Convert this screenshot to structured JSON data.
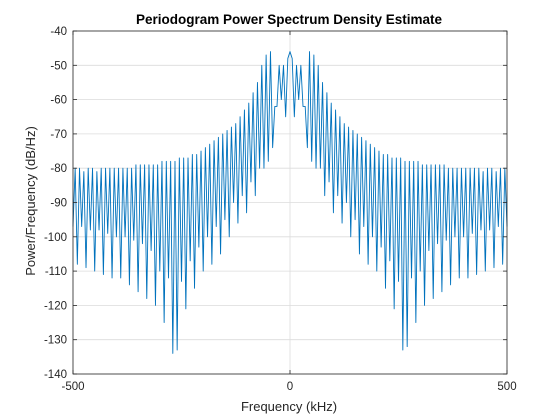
{
  "chart_data": {
    "type": "line",
    "title": "Periodogram Power Spectrum Density Estimate",
    "xlabel": "Frequency (kHz)",
    "ylabel": "Power/Frequency (dB/Hz)",
    "xlim": [
      -500,
      500
    ],
    "ylim": [
      -140,
      -40
    ],
    "x_ticks": [
      -500,
      0,
      500
    ],
    "x_tick_labels": [
      "-500",
      "0",
      "500"
    ],
    "y_ticks": [
      -140,
      -130,
      -120,
      -110,
      -100,
      -90,
      -80,
      -70,
      -60,
      -50,
      -40
    ],
    "y_tick_labels": [
      "-140",
      "-130",
      "-120",
      "-110",
      "-100",
      "-90",
      "-80",
      "-70",
      "-60",
      "-50",
      "-40"
    ],
    "grid": true,
    "line_color": "#0072BD",
    "series": [
      {
        "name": "",
        "x": [
          -500,
          -495,
          -490,
          -485,
          -480,
          -475,
          -470,
          -465,
          -460,
          -455,
          -450,
          -445,
          -440,
          -435,
          -430,
          -425,
          -420,
          -415,
          -410,
          -405,
          -400,
          -395,
          -390,
          -385,
          -380,
          -375,
          -370,
          -365,
          -360,
          -355,
          -350,
          -345,
          -340,
          -335,
          -330,
          -325,
          -320,
          -315,
          -310,
          -305,
          -300,
          -295,
          -290,
          -285,
          -280,
          -275,
          -270,
          -265,
          -260,
          -255,
          -250,
          -245,
          -240,
          -235,
          -230,
          -225,
          -220,
          -215,
          -210,
          -205,
          -200,
          -195,
          -190,
          -185,
          -180,
          -175,
          -170,
          -165,
          -160,
          -155,
          -150,
          -145,
          -140,
          -135,
          -130,
          -125,
          -120,
          -115,
          -110,
          -105,
          -100,
          -95,
          -90,
          -85,
          -80,
          -75,
          -70,
          -65,
          -60,
          -55,
          -50,
          -45,
          -40,
          -35,
          -30,
          -25,
          -20,
          -15,
          -10,
          -5,
          0,
          5,
          10,
          15,
          20,
          25,
          30,
          35,
          40,
          45,
          50,
          55,
          60,
          65,
          70,
          75,
          80,
          85,
          90,
          95,
          100,
          105,
          110,
          115,
          120,
          125,
          130,
          135,
          140,
          145,
          150,
          155,
          160,
          165,
          170,
          175,
          180,
          185,
          190,
          195,
          200,
          205,
          210,
          215,
          220,
          225,
          230,
          235,
          240,
          245,
          250,
          255,
          260,
          265,
          270,
          275,
          280,
          285,
          290,
          295,
          300,
          305,
          310,
          315,
          320,
          325,
          330,
          335,
          340,
          345,
          350,
          355,
          360,
          365,
          370,
          375,
          380,
          385,
          390,
          395,
          400,
          405,
          410,
          415,
          420,
          425,
          430,
          435,
          440,
          445,
          450,
          455,
          460,
          465,
          470,
          475,
          480,
          485,
          490,
          495,
          500
        ],
        "y": [
          -97,
          -80,
          -108,
          -80,
          -97,
          -81,
          -109,
          -80,
          -98,
          -80,
          -110,
          -81,
          -98,
          -80,
          -111,
          -80,
          -99,
          -80,
          -112,
          -80,
          -100,
          -80,
          -112,
          -80,
          -100,
          -80,
          -114,
          -80,
          -101,
          -79,
          -116,
          -79,
          -102,
          -79,
          -118,
          -79,
          -104,
          -79,
          -120,
          -79,
          -110,
          -78,
          -125,
          -78,
          -112,
          -78,
          -134,
          -78,
          -133,
          -77,
          -113,
          -77,
          -121,
          -77,
          -107,
          -76,
          -115,
          -76,
          -103,
          -75,
          -110,
          -74,
          -100,
          -73,
          -108,
          -72,
          -97,
          -71,
          -105,
          -70,
          -95,
          -69,
          -100,
          -68,
          -90,
          -67,
          -96,
          -65,
          -88,
          -63,
          -93,
          -61,
          -84,
          -58,
          -88,
          -55,
          -80,
          -50,
          -80,
          -47,
          -78,
          -46,
          -74,
          -62,
          -62,
          -50,
          -60,
          -50,
          -65,
          -48,
          -46,
          -48,
          -65,
          -50,
          -60,
          -50,
          -62,
          -62,
          -74,
          -46,
          -78,
          -47,
          -80,
          -50,
          -80,
          -55,
          -88,
          -58,
          -84,
          -61,
          -93,
          -63,
          -88,
          -65,
          -96,
          -67,
          -90,
          -68,
          -100,
          -69,
          -95,
          -70,
          -105,
          -71,
          -97,
          -72,
          -108,
          -73,
          -100,
          -74,
          -110,
          -75,
          -103,
          -76,
          -115,
          -76,
          -107,
          -77,
          -121,
          -77,
          -113,
          -77,
          -133,
          -78,
          -132,
          -78,
          -112,
          -78,
          -125,
          -78,
          -110,
          -79,
          -120,
          -79,
          -104,
          -79,
          -118,
          -79,
          -102,
          -79,
          -116,
          -79,
          -101,
          -80,
          -114,
          -80,
          -100,
          -80,
          -112,
          -80,
          -100,
          -80,
          -112,
          -80,
          -99,
          -80,
          -111,
          -80,
          -98,
          -81,
          -110,
          -80,
          -98,
          -80,
          -109,
          -81,
          -97,
          -80,
          -108,
          -80,
          -97
        ]
      }
    ]
  }
}
